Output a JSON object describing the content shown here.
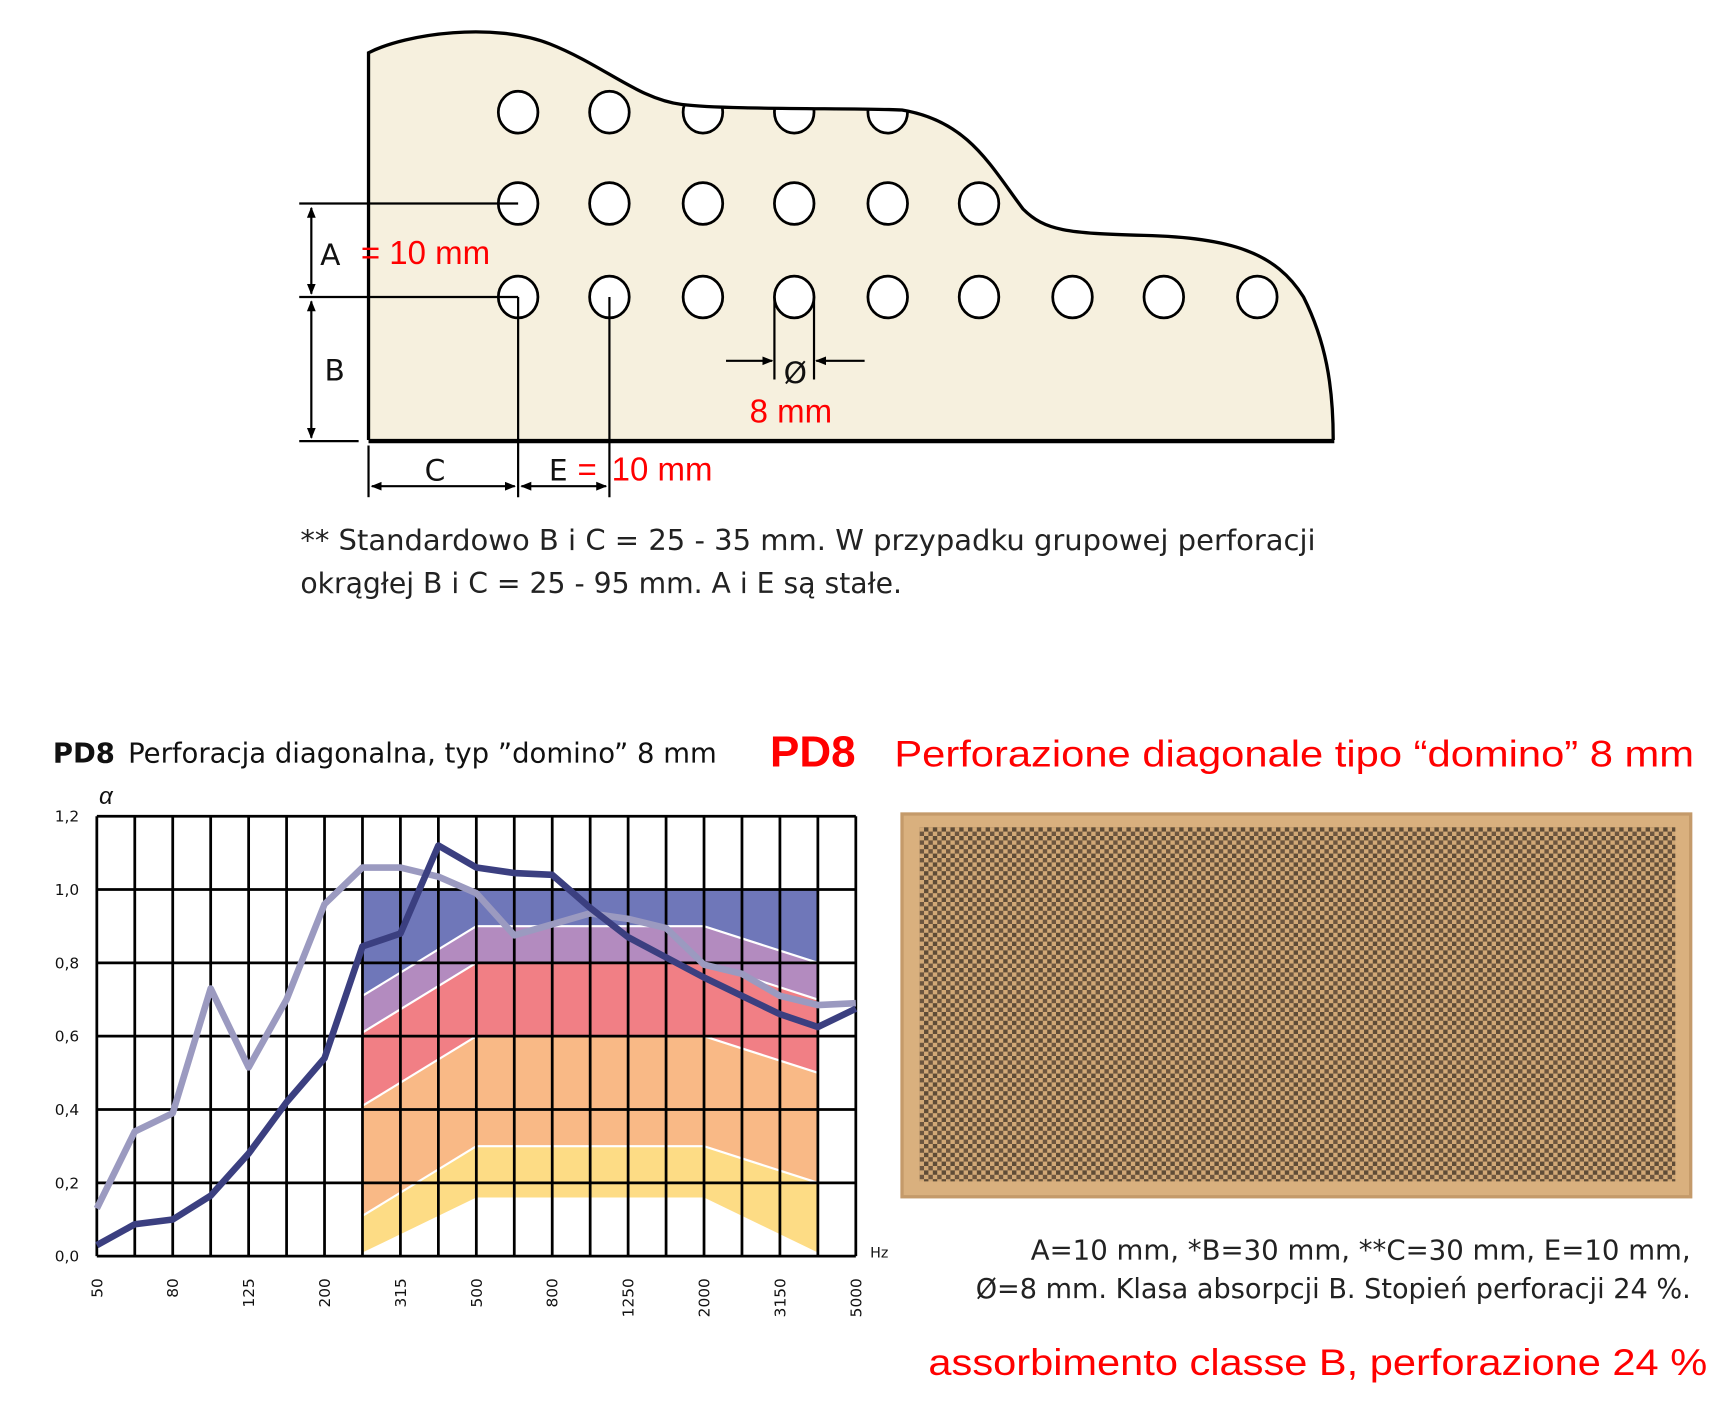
{
  "diagram": {
    "label_a": "A",
    "value_a": "= 10 mm",
    "label_b": "B",
    "label_c": "C",
    "label_e": "E",
    "value_e_eq": "=",
    "value_e": "10 mm",
    "diameter_symbol": "Ø",
    "diameter_value": "8 mm",
    "note_line1": "** Standardowo B i C = 25 - 35 mm. W przypadku grupowej perforacji",
    "note_line2": "okrągłej B i C = 25 - 95 mm. A i E są stałe."
  },
  "heading": {
    "code_pl": "PD8",
    "title_pl": "Perforacja diagonalna, typ ”domino” 8 mm",
    "code_it": "PD8",
    "title_it": "Perforazione diagonale tipo “domino” 8 mm"
  },
  "caption": {
    "line1": "A=10 mm, *B=30 mm, **C=30 mm, E=10 mm,",
    "line2": "Ø=8 mm. Klasa absorpcji B. Stopień perforacji 24 %.",
    "italian": "assorbimento classe B, perforazione 24 %"
  },
  "colors": {
    "red": "#ff0000",
    "panel_fill": "#f6f0de",
    "dark_series": "#3b3f80",
    "light_series": "#9b9ac0",
    "band_a": "#6f77b9",
    "band_b": "#b38bbf",
    "band_c": "#f17f85",
    "band_d": "#f9b986",
    "band_e": "#fddc85"
  },
  "chart_data": {
    "type": "line",
    "ylabel": "α",
    "xlabel": "Hz",
    "ylim": [
      0,
      1.2
    ],
    "yticks": [
      "0,0",
      "0,2",
      "0,4",
      "0,6",
      "0,8",
      "1,0",
      "1,2"
    ],
    "x": [
      50,
      63,
      80,
      100,
      125,
      160,
      200,
      250,
      315,
      400,
      500,
      630,
      800,
      1000,
      1250,
      1600,
      2000,
      2500,
      3150,
      4000,
      5000
    ],
    "xtick_labels": [
      "50",
      "80",
      "125",
      "200",
      "315",
      "500",
      "800",
      "1250",
      "2000",
      "3150",
      "5000"
    ],
    "grid": true,
    "series": [
      {
        "name": "dark",
        "values": [
          0.03,
          0.087,
          0.1,
          0.165,
          0.28,
          0.42,
          0.54,
          0.845,
          0.88,
          1.12,
          1.06,
          1.045,
          1.04,
          0.95,
          0.87,
          0.815,
          0.76,
          0.71,
          0.66,
          0.625,
          0.675
        ]
      },
      {
        "name": "light",
        "values": [
          0.13,
          0.34,
          0.39,
          0.73,
          0.515,
          0.7,
          0.96,
          1.06,
          1.06,
          1.035,
          0.99,
          0.875,
          0.905,
          0.935,
          0.92,
          0.895,
          0.795,
          0.77,
          0.71,
          0.685,
          0.69
        ]
      }
    ],
    "class_bands": {
      "x": [
        250,
        500,
        2000,
        4000
      ],
      "boundaries": [
        [
          1.0,
          1.0,
          1.0,
          1.0
        ],
        [
          0.71,
          0.9,
          0.9,
          0.8
        ],
        [
          0.61,
          0.8,
          0.8,
          0.7
        ],
        [
          0.41,
          0.6,
          0.6,
          0.5
        ],
        [
          0.11,
          0.3,
          0.3,
          0.2
        ],
        [
          0.01,
          0.16,
          0.16,
          0.01
        ]
      ]
    }
  }
}
